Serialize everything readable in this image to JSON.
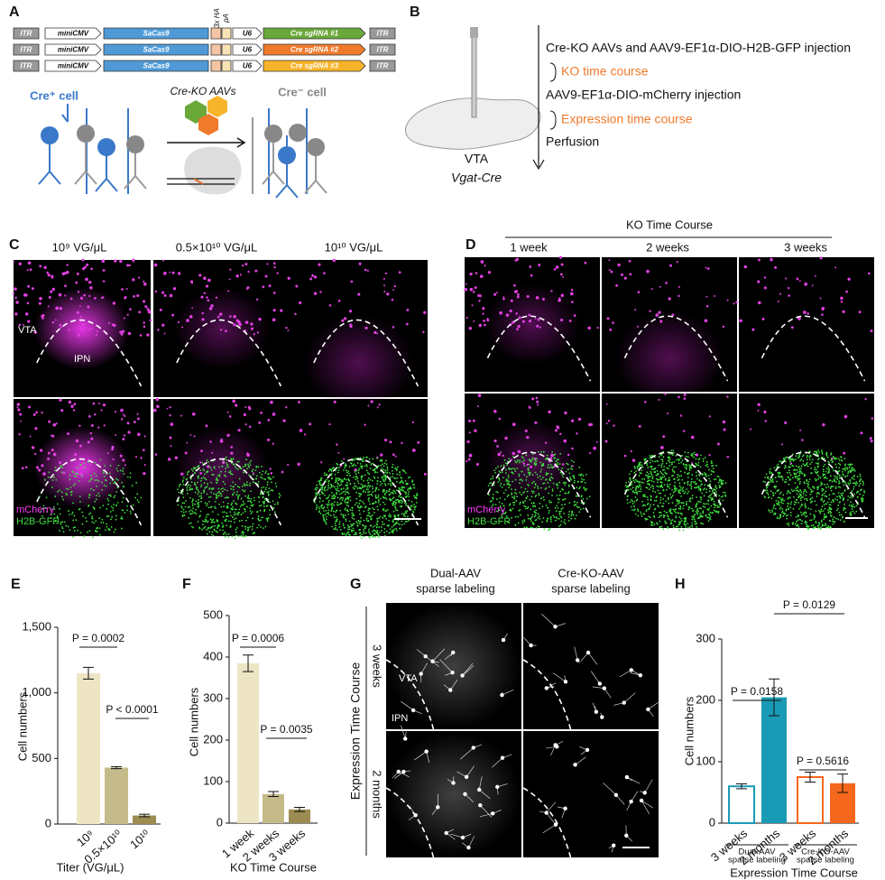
{
  "panels": {
    "A": {
      "label": "A",
      "constructs": [
        {
          "itr_left": "ITR",
          "promoter": "miniCMV",
          "cas": "SaCas9",
          "u6": "U6",
          "sgrna": "Cre sgRNA #1",
          "itr_right": "ITR",
          "color": "#6aa83a"
        },
        {
          "itr_left": "ITR",
          "promoter": "miniCMV",
          "cas": "SaCas9",
          "u6": "U6",
          "sgrna": "Cre sgRNA #2",
          "itr_right": "ITR",
          "color": "#ef7a2c"
        },
        {
          "itr_left": "ITR",
          "promoter": "miniCMV",
          "cas": "SaCas9",
          "u6": "U6",
          "sgrna": "Cre sgRNA #3",
          "itr_right": "ITR",
          "color": "#f6b42a"
        }
      ],
      "ha": "3x HA",
      "pa": "pA",
      "cre_pos": "Cre⁺ cell",
      "aavs": "Cre-KO AAVs",
      "cre_neg": "Cre⁻ cell"
    },
    "B": {
      "label": "B",
      "vta": "VTA",
      "mouse": "Vgat-Cre",
      "steps": [
        "Cre-KO AAVs and AAV9-EF1α-DIO-H2B-GFP injection",
        "KO time course",
        "AAV9-EF1α-DIO-mCherry injection",
        "Expression time course",
        "Perfusion"
      ]
    },
    "C": {
      "label": "C",
      "columns": [
        "10⁹ VG/μL",
        "0.5×10¹⁰ VG/μL",
        "10¹⁰ VG/μL"
      ],
      "vta": "VTA",
      "ipn": "IPN",
      "mcherry": "mCherry",
      "gfp": "H2B-GFP"
    },
    "D": {
      "label": "D",
      "header": "KO Time Course",
      "columns": [
        "1 week",
        "2 weeks",
        "3 weeks"
      ],
      "mcherry": "mCherry",
      "gfp": "H2B-GFP"
    },
    "G": {
      "label": "G",
      "columns": [
        [
          "Dual-AAV",
          "sparse labeling"
        ],
        [
          "Cre-KO-AAV",
          "sparse labeling"
        ]
      ],
      "side": "Expression Time Course",
      "rows": [
        "3 weeks",
        "2 months"
      ],
      "vta": "VTA",
      "ipn": "IPN"
    }
  },
  "chart_data": [
    {
      "type": "bar",
      "panel": "E",
      "ylabel": "Cell numbers",
      "xlabel": "Titer (VG/μL)",
      "categories": [
        "10⁹",
        "0.5×10¹⁰",
        "10¹⁰"
      ],
      "values": [
        1150,
        430,
        65
      ],
      "errors": [
        45,
        8,
        10
      ],
      "colors": [
        "#ede5c3",
        "#c5ba8a",
        "#9d8c52"
      ],
      "ylim": [
        0,
        1500
      ],
      "yticks": [
        0,
        500,
        {
          "value": 1000,
          "label": "1,000"
        },
        {
          "value": 1500,
          "label": "1,500"
        }
      ],
      "annotations": [
        "P = 0.0002",
        "P < 0.0001"
      ]
    },
    {
      "type": "bar",
      "panel": "F",
      "ylabel": "Cell numbers",
      "xlabel": "KO Time Course",
      "categories": [
        "1 week",
        "2 weeks",
        "3 weeks"
      ],
      "values": [
        385,
        70,
        33
      ],
      "errors": [
        20,
        6,
        5
      ],
      "colors": [
        "#ede5c3",
        "#c5ba8a",
        "#9d8c52"
      ],
      "ylim": [
        0,
        500
      ],
      "yticks": [
        0,
        100,
        200,
        300,
        400,
        500
      ],
      "annotations": [
        "P = 0.0006",
        "P = 0.0035"
      ]
    },
    {
      "type": "bar",
      "panel": "H",
      "ylabel": "Cell numbers",
      "xlabel": "Expression Time Course",
      "categories": [
        "3 weeks",
        "2 months",
        "3 weeks",
        "2 months"
      ],
      "values": [
        60,
        205,
        75,
        65
      ],
      "errors": [
        4,
        30,
        8,
        15
      ],
      "colors": [
        "#1a9bb5",
        "#1a9bb5",
        "#f4671c",
        "#f4671c"
      ],
      "filled": [
        false,
        true,
        false,
        true
      ],
      "groups": [
        [
          "Dual-AAV",
          "sparse labeling"
        ],
        [
          "Cre-KO-AAV",
          "sparse labeling"
        ]
      ],
      "ylim": [
        0,
        300
      ],
      "yticks": [
        0,
        100,
        200,
        300
      ],
      "annotations": [
        "P = 0.0158",
        "P = 0.0129",
        "P = 0.5616"
      ]
    }
  ]
}
